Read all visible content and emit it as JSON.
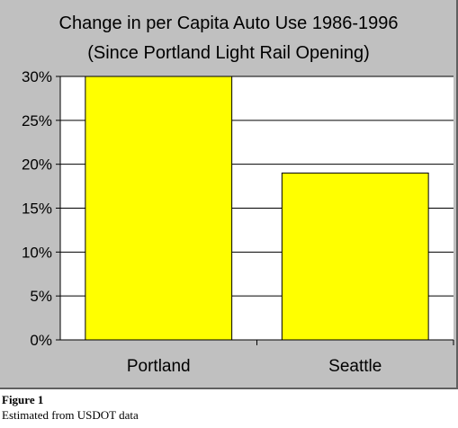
{
  "chart_data": {
    "type": "bar",
    "title": "Change in per Capita Auto Use 1986-1996",
    "subtitle": "(Since Portland Light Rail Opening)",
    "categories": [
      "Portland",
      "Seattle"
    ],
    "values": [
      30,
      19
    ],
    "y_ticks": [
      "0%",
      "5%",
      "10%",
      "15%",
      "20%",
      "25%",
      "30%"
    ],
    "ylim": [
      0,
      30
    ],
    "grid": true,
    "bar_color": "#ffff00",
    "panel_color": "#c0c0c0",
    "plot_color": "#ffffff"
  },
  "caption": {
    "title": "Figure 1",
    "note": "Estimated from USDOT data"
  }
}
